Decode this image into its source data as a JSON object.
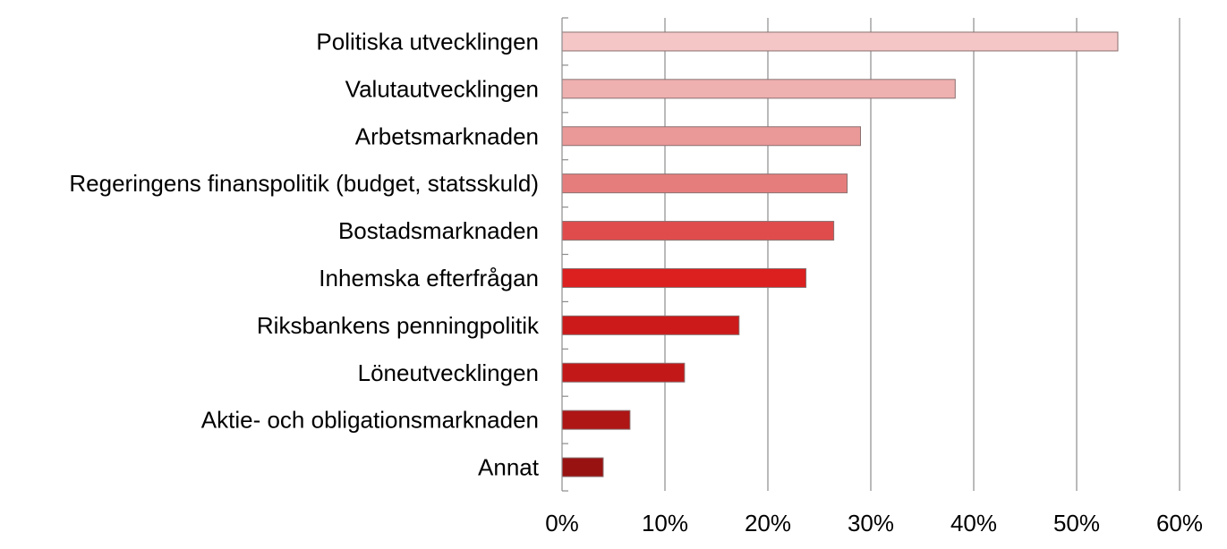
{
  "chart_data": {
    "type": "bar",
    "orientation": "horizontal",
    "categories": [
      "Politiska utvecklingen",
      "Valutautvecklingen",
      "Arbetsmarknaden",
      "Regeringens finanspolitik (budget, statsskuld)",
      "Bostadsmarknaden",
      "Inhemska efterfrågan",
      "Riksbankens penningpolitik",
      "Löneutvecklingen",
      "Aktie- och obligationsmarknaden",
      "Annat"
    ],
    "values": [
      54,
      38.2,
      29,
      27.7,
      26.4,
      23.7,
      17.2,
      11.9,
      6.6,
      4
    ],
    "colors": [
      "#f4c6c6",
      "#efb0b0",
      "#ea9898",
      "#e67d7d",
      "#e04c4c",
      "#dc1f1f",
      "#cc1a1a",
      "#c31818",
      "#ae1515",
      "#991212"
    ],
    "x_ticks": [
      "0%",
      "10%",
      "20%",
      "30%",
      "40%",
      "50%",
      "60%"
    ],
    "xlim": [
      0,
      60
    ],
    "x_unit": "percent",
    "grid": "vertical",
    "title": "",
    "xlabel": "",
    "ylabel": ""
  }
}
